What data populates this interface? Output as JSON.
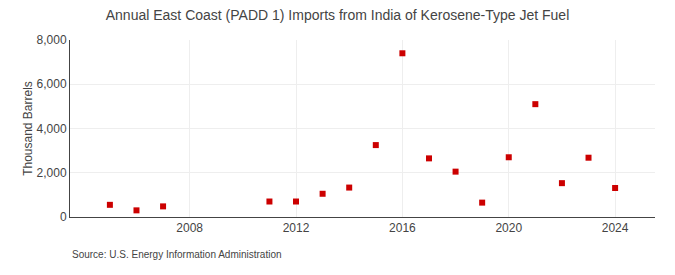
{
  "chart_data": {
    "type": "scatter",
    "title": "Annual East Coast (PADD 1) Imports from India of Kerosene-Type Jet Fuel",
    "ylabel": "Thousand Barrels",
    "annotations": [
      "Source: U.S. Energy Information Administration"
    ],
    "x": [
      2005,
      2006,
      2007,
      2011,
      2012,
      2013,
      2014,
      2015,
      2016,
      2017,
      2018,
      2019,
      2020,
      2021,
      2022,
      2023,
      2024
    ],
    "values": [
      550,
      300,
      480,
      700,
      700,
      1050,
      1330,
      3250,
      7400,
      2650,
      2050,
      650,
      2700,
      5100,
      1530,
      2680,
      1310
    ],
    "color": "#cc0000",
    "marker": "square",
    "xlim": [
      2003.5,
      2025.5
    ],
    "ylim": [
      0,
      8000
    ],
    "xticks": [
      2008,
      2012,
      2016,
      2020,
      2024
    ],
    "yticks": [
      0,
      {
        "value": 2000,
        "label": "2,000"
      },
      {
        "value": 4000,
        "label": "4,000"
      },
      {
        "value": 6000,
        "label": "6,000"
      },
      {
        "value": 8000,
        "label": "8,000"
      }
    ],
    "grid": true
  }
}
